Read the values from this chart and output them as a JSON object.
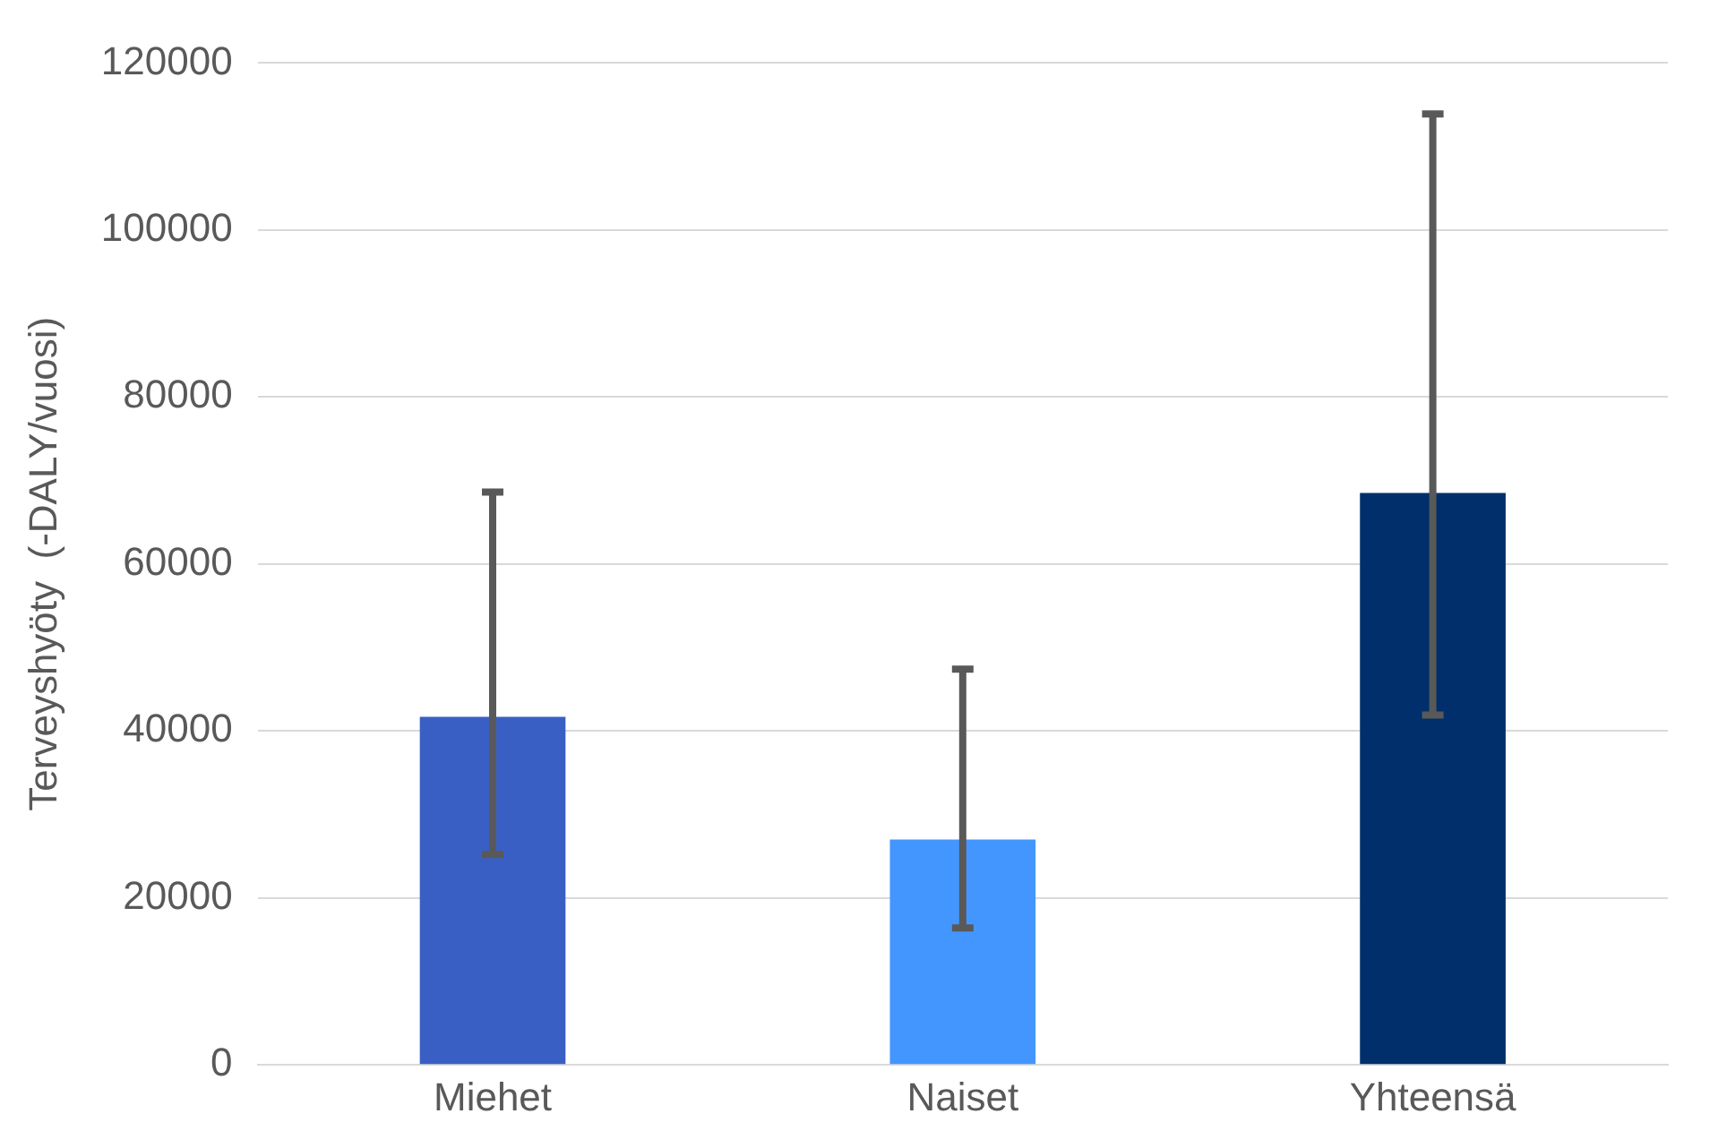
{
  "chart_data": {
    "type": "bar",
    "ylabel": "Terveyshyöty  (-DALY/vuosi)",
    "categories": [
      "Miehet",
      "Naiset",
      "Yhteensä"
    ],
    "values": [
      41700,
      27000,
      68500
    ],
    "colors": [
      "#3a5fc4",
      "#4496ff",
      "#002f6c"
    ],
    "errors": [
      [
        25200,
        68600
      ],
      [
        16400,
        47400
      ],
      [
        41900,
        113900
      ]
    ],
    "ylim": [
      0,
      120000
    ],
    "yticks": [
      0,
      20000,
      40000,
      60000,
      80000,
      100000,
      120000
    ],
    "grid": "y",
    "legend": false
  }
}
